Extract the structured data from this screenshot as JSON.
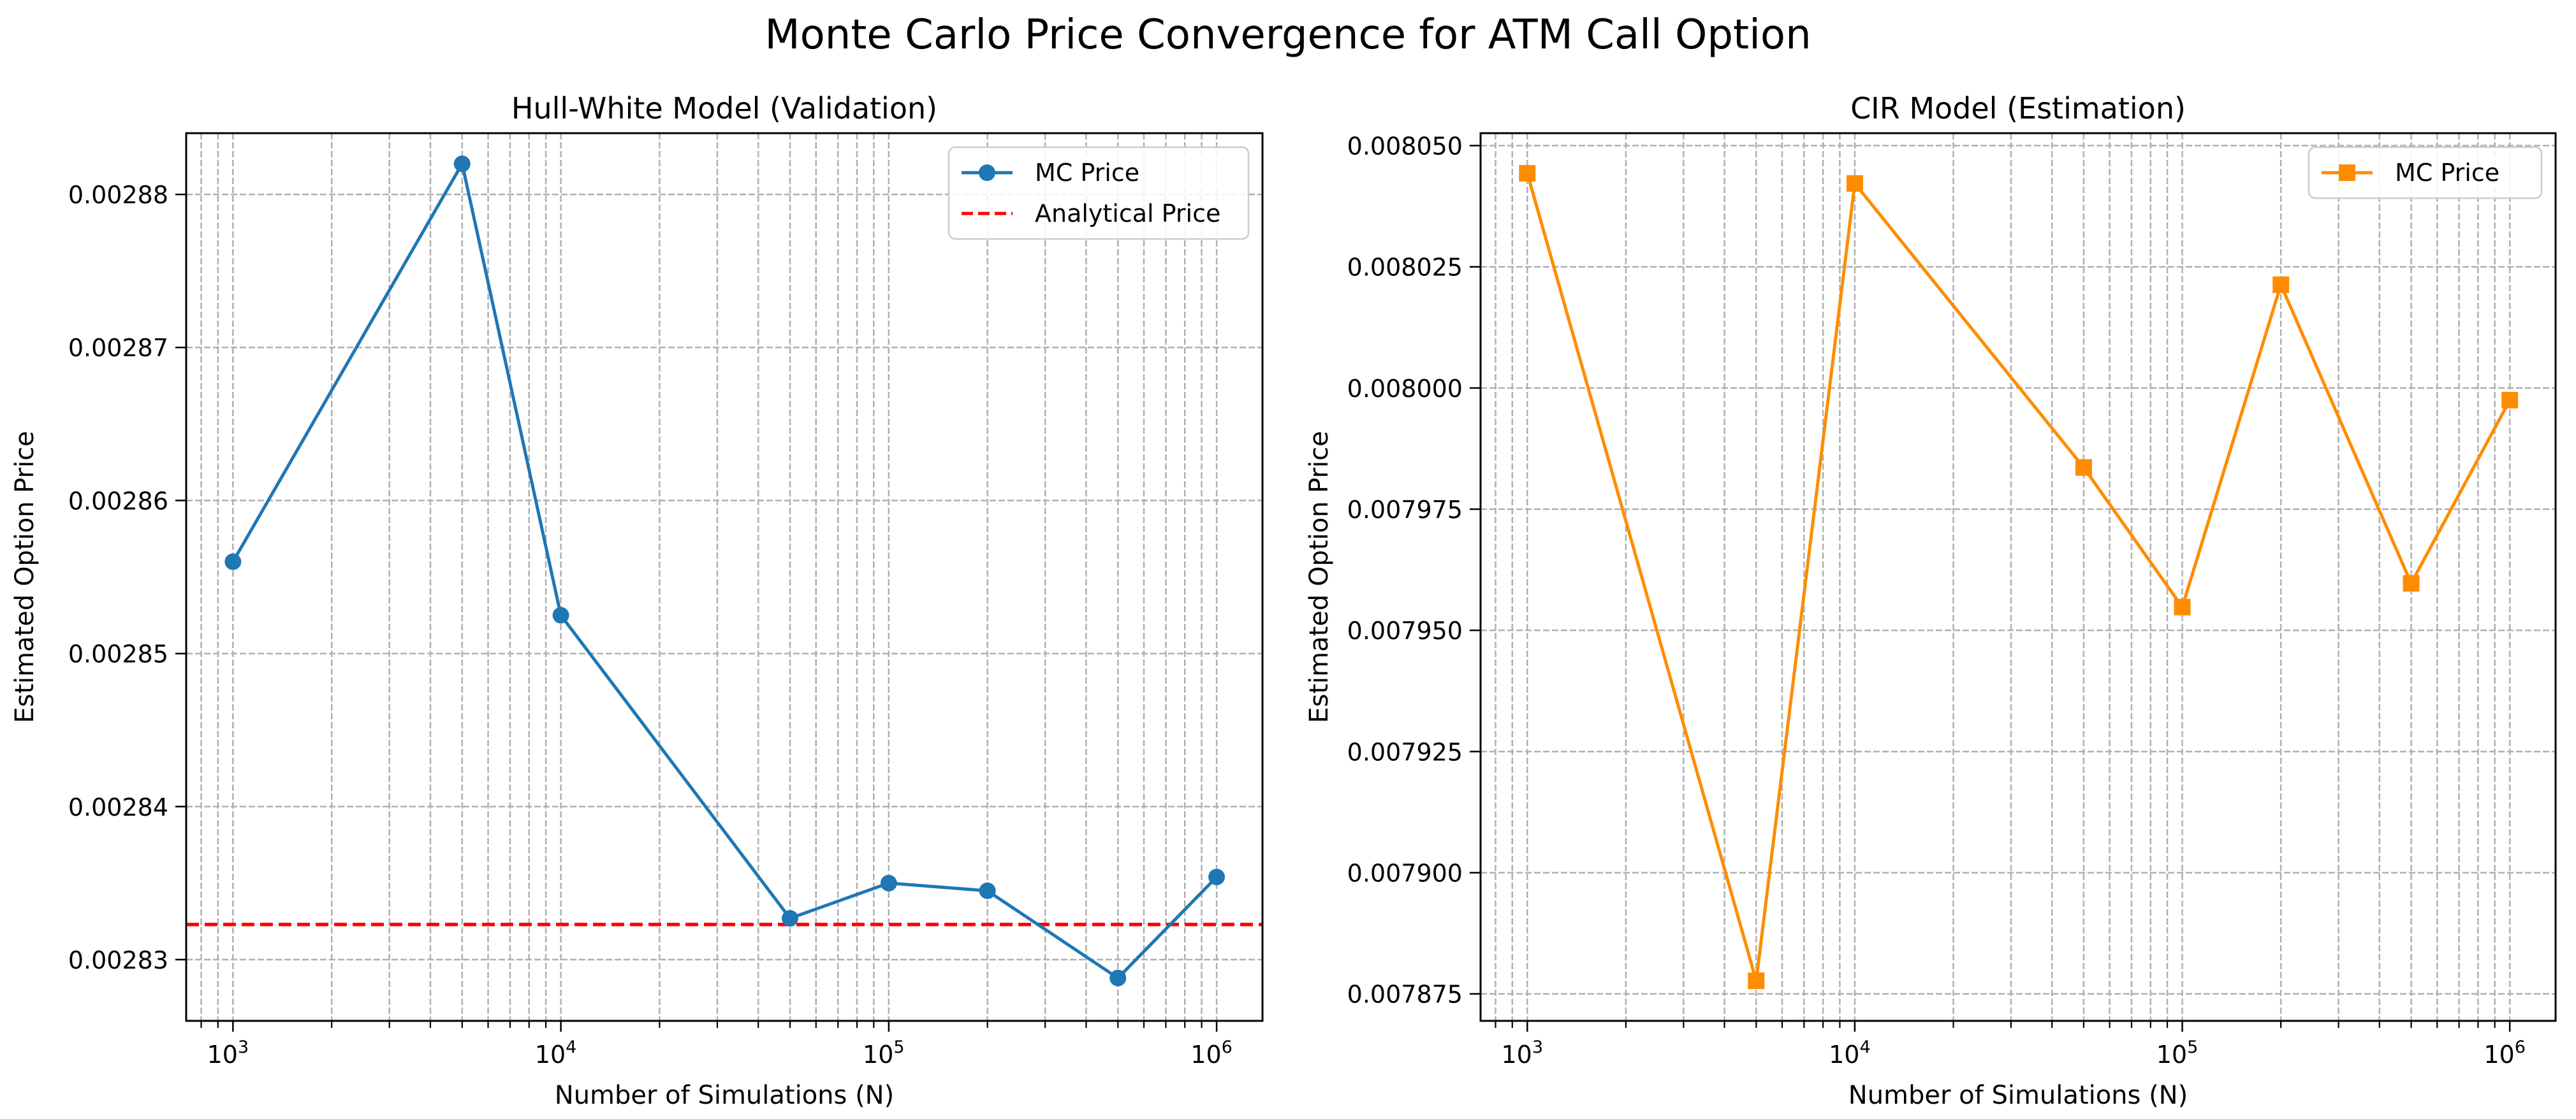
{
  "figure": {
    "title": "Monte Carlo Price Convergence for ATM Call Option"
  },
  "chart_data": [
    {
      "type": "line",
      "title": "Hull-White Model (Validation)",
      "xlabel": "Number of Simulations (N)",
      "ylabel": "Estimated Option Price",
      "xscale": "log",
      "xlim": [
        720,
        1380000
      ],
      "ylim": [
        0.002826,
        0.002884
      ],
      "xtick_labels": [
        {
          "base": "10",
          "exp": "3",
          "value": 1000
        },
        {
          "base": "10",
          "exp": "4",
          "value": 10000
        },
        {
          "base": "10",
          "exp": "5",
          "value": 100000
        },
        {
          "base": "10",
          "exp": "6",
          "value": 1000000
        }
      ],
      "yticks": [
        "0.00283",
        "0.00284",
        "0.00285",
        "0.00286",
        "0.00287",
        "0.00288"
      ],
      "grid": "major and minor, dashed",
      "legend_position": "top-right",
      "x": [
        1000,
        5000,
        10000,
        50000,
        100000,
        200000,
        500000,
        1000000
      ],
      "series": [
        {
          "name": "MC Price",
          "color": "#1f77b4",
          "marker": "circle",
          "values": [
            0.002856,
            0.002882,
            0.0028525,
            0.0028327,
            0.002835,
            0.0028345,
            0.0028288,
            0.0028354
          ]
        }
      ],
      "reference_lines": [
        {
          "name": "Analytical Price",
          "color": "#ff0000",
          "style": "dashed",
          "y": 0.0028323
        }
      ]
    },
    {
      "type": "line",
      "title": "CIR Model (Estimation)",
      "xlabel": "Number of Simulations (N)",
      "ylabel": "Estimated Option Price",
      "xscale": "log",
      "xlim": [
        720,
        1380000
      ],
      "ylim": [
        0.00786943,
        0.00805257
      ],
      "xtick_labels": [
        {
          "base": "10",
          "exp": "3",
          "value": 1000
        },
        {
          "base": "10",
          "exp": "4",
          "value": 10000
        },
        {
          "base": "10",
          "exp": "5",
          "value": 100000
        },
        {
          "base": "10",
          "exp": "6",
          "value": 1000000
        }
      ],
      "yticks": [
        "0.007875",
        "0.007900",
        "0.007925",
        "0.007950",
        "0.007975",
        "0.008000",
        "0.008025",
        "0.008050"
      ],
      "grid": "major and minor, dashed",
      "legend_position": "top-right",
      "x": [
        1000,
        5000,
        10000,
        50000,
        100000,
        200000,
        500000,
        1000000
      ],
      "series": [
        {
          "name": "MC Price",
          "color": "#ff8c00",
          "marker": "square",
          "values": [
            0.0080443,
            0.0078777,
            0.0080422,
            0.0079836,
            0.0079548,
            0.0080213,
            0.0079597,
            0.0079975
          ]
        }
      ],
      "reference_lines": []
    }
  ]
}
